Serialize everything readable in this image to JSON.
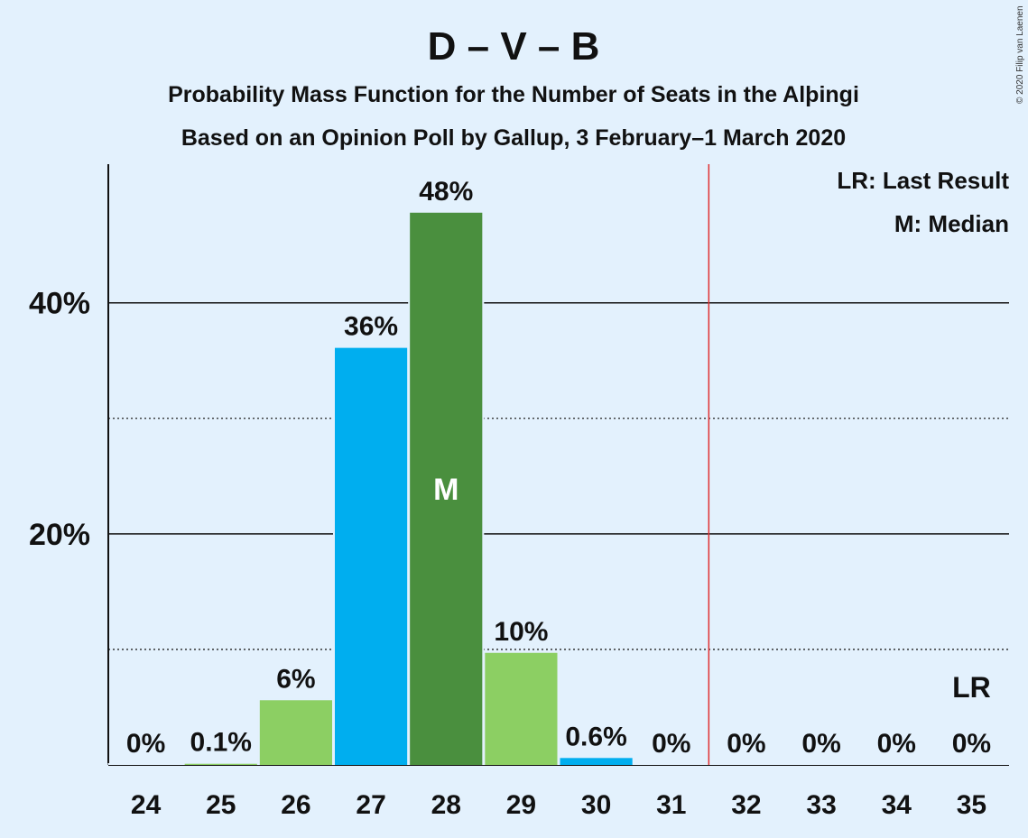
{
  "title": "D – V – B",
  "subtitle1": "Probability Mass Function for the Number of Seats in the Alþingi",
  "subtitle2": "Based on an Opinion Poll by Gallup, 3 February–1 March 2020",
  "copyright": "© 2020 Filip van Laenen",
  "legend": {
    "last_result": "LR: Last Result",
    "median": "M: Median"
  },
  "markers": {
    "median_label": "M",
    "median_category": "28",
    "lr_label": "LR",
    "lr_category": "35",
    "majority_line_between": [
      "31",
      "32"
    ]
  },
  "colors": {
    "background": "#e3f1fd",
    "light_green": "#8ccf63",
    "blue": "#00aeef",
    "dark_green": "#4a8f3e",
    "majority_line": "#e03030"
  },
  "chart_data": {
    "type": "bar",
    "categories": [
      "24",
      "25",
      "26",
      "27",
      "28",
      "29",
      "30",
      "31",
      "32",
      "33",
      "34",
      "35"
    ],
    "values": [
      0,
      0.1,
      5.6,
      36.1,
      47.8,
      9.7,
      0.6,
      0,
      0,
      0,
      0,
      0
    ],
    "labels": [
      "0%",
      "0.1%",
      "6%",
      "36%",
      "48%",
      "10%",
      "0.6%",
      "0%",
      "0%",
      "0%",
      "0%",
      "0%"
    ],
    "bar_colors": [
      "#8ccf63",
      "#8ccf63",
      "#8ccf63",
      "#00aeef",
      "#4a8f3e",
      "#8ccf63",
      "#00aeef",
      "#8ccf63",
      "#8ccf63",
      "#8ccf63",
      "#8ccf63",
      "#8ccf63"
    ],
    "ylim": [
      0,
      52
    ],
    "yticks_major": [
      20,
      40
    ],
    "ytick_labels": [
      "20%",
      "40%"
    ],
    "yticks_minor": [
      10,
      30
    ],
    "xlabel": "",
    "ylabel": "",
    "grid": true,
    "legend_position": "top-right"
  }
}
